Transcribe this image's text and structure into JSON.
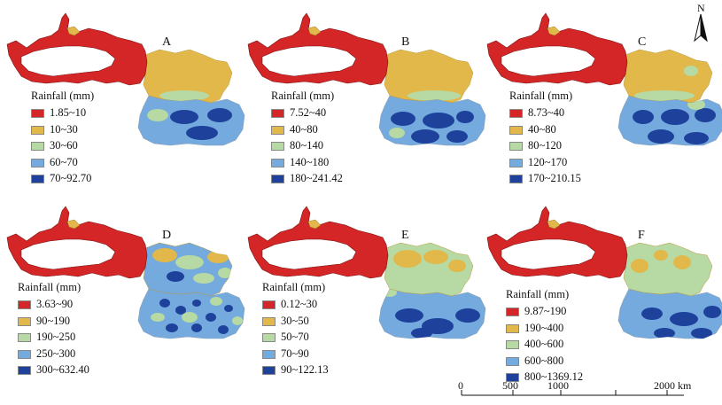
{
  "north_arrow": {
    "letter": "N"
  },
  "scale_bar": {
    "labels": [
      "0",
      "500",
      "1000",
      "2000 km"
    ]
  },
  "colors": {
    "c1": "#d42626",
    "c2": "#e2b84a",
    "c3": "#b7d9a3",
    "c4": "#74aade",
    "c5": "#1e429b"
  },
  "panels": [
    {
      "label": "A",
      "legend_title": "Rainfall (mm)",
      "classes": [
        "1.85~10",
        "10~30",
        "30~60",
        "60~70",
        "70~92.70"
      ]
    },
    {
      "label": "B",
      "legend_title": "Rainfall (mm)",
      "classes": [
        "7.52~40",
        "40~80",
        "80~140",
        "140~180",
        "180~241.42"
      ]
    },
    {
      "label": "C",
      "legend_title": "Rainfall (mm)",
      "classes": [
        "8.73~40",
        "40~80",
        "80~120",
        "120~170",
        "170~210.15"
      ]
    },
    {
      "label": "D",
      "legend_title": "Rainfall (mm)",
      "classes": [
        "3.63~90",
        "90~190",
        "190~250",
        "250~300",
        "300~632.40"
      ]
    },
    {
      "label": "E",
      "legend_title": "Rainfall (mm)",
      "classes": [
        "0.12~30",
        "30~50",
        "50~70",
        "70~90",
        "90~122.13"
      ]
    },
    {
      "label": "F",
      "legend_title": "Rainfall (mm)",
      "classes": [
        "9.87~190",
        "190~400",
        "400~600",
        "600~800",
        "800~1369.12"
      ]
    }
  ]
}
